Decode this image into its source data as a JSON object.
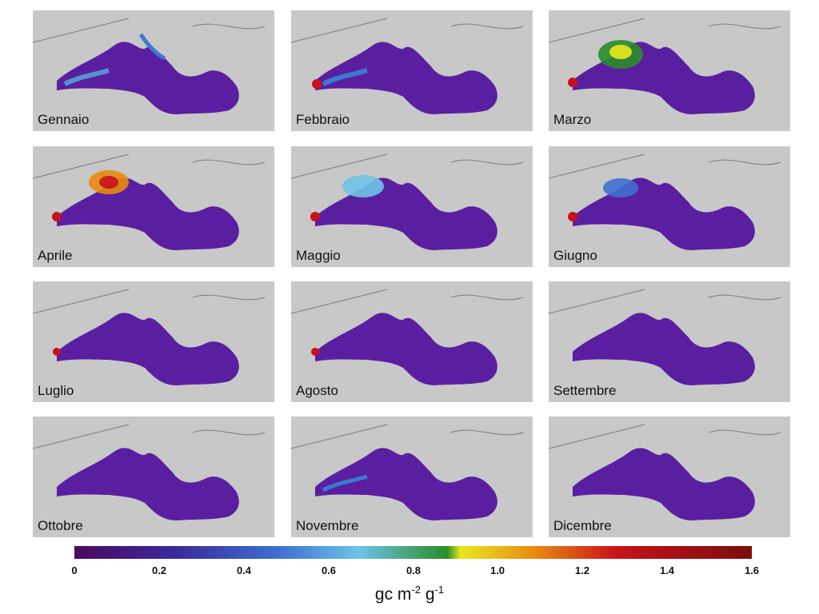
{
  "panels": [
    {
      "month": "Gennaio"
    },
    {
      "month": "Febbraio"
    },
    {
      "month": "Marzo"
    },
    {
      "month": "Aprile"
    },
    {
      "month": "Maggio"
    },
    {
      "month": "Giugno"
    },
    {
      "month": "Luglio"
    },
    {
      "month": "Agosto"
    },
    {
      "month": "Settembre"
    },
    {
      "month": "Ottobre"
    },
    {
      "month": "Novembre"
    },
    {
      "month": "Dicembre"
    }
  ],
  "colorbar": {
    "min": 0,
    "max": 1.6,
    "ticks": [
      "0",
      "0.2",
      "0.4",
      "0.6",
      "0.8",
      "1.0",
      "1.2",
      "1.4",
      "1.6"
    ],
    "unit": {
      "base1": "gc m",
      "exp1": "-2",
      "base2": " g",
      "exp2": "-1"
    },
    "stops": [
      "#4b0a5e",
      "#3a2a9a",
      "#3e6fd0",
      "#6ec3e6",
      "#2a8c2a",
      "#e8e820",
      "#e88a10",
      "#c8121a",
      "#7a0e0e"
    ]
  },
  "colors": {
    "land": "#c8c8c8",
    "sea_low": "#5a1fa0",
    "coast": "#7a7a7a"
  }
}
